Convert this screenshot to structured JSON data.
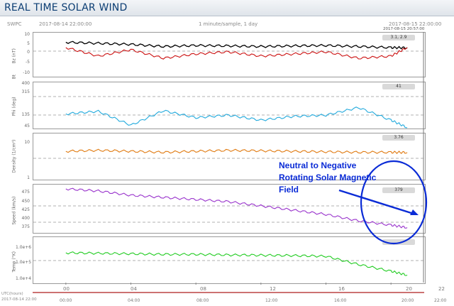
{
  "header": {
    "title": "REAL TIME SOLAR WIND",
    "source": "SWPC",
    "start": "2017-08-14 22:00:00",
    "mid": "1 minute/sample, 1 day",
    "end": "2017-08-15 22:00:00",
    "end_small": "2017-08-15 20:57:00"
  },
  "panels": [
    {
      "ylabel": "Bz (nT)",
      "ylabel2": "Bt",
      "ticks": [
        "10",
        "5",
        "0",
        "-5",
        "-10"
      ],
      "badge": "3.1, 2.9"
    },
    {
      "ylabel": "Phi (deg)",
      "ticks": [
        "400",
        "315",
        "135",
        "45"
      ],
      "badge": "41"
    },
    {
      "ylabel": "Density (1/cm³)",
      "ticks": [
        "10",
        "1"
      ],
      "badge": "3.76"
    },
    {
      "ylabel": "Speed (km/s)",
      "ticks": [
        "475",
        "450",
        "425",
        "400",
        "375"
      ],
      "badge": "379"
    },
    {
      "ylabel": "Temp (°K)",
      "ticks": [
        "1.0e+6",
        "1.0e+5",
        "1.0e+4"
      ],
      "badge": ""
    }
  ],
  "xaxis": {
    "ticks": [
      "00",
      "04",
      "08",
      "12",
      "16",
      "20",
      "22"
    ],
    "utc_label": "UTC(hours)",
    "utc_ticks": [
      "00:00",
      "04:00",
      "08:00",
      "12:00",
      "16:00",
      "20:00",
      "22:00"
    ],
    "start_small": "2017-08-14 22:00"
  },
  "annotation": {
    "lines": [
      "Neutral to Negative",
      "Rotating Solar Magnetic",
      "Field"
    ],
    "color": "#0a2bd6"
  },
  "colors": {
    "bt": "#000000",
    "bz": "#cc1111",
    "phi": "#22aadd",
    "density": "#e07a10",
    "speed": "#9933cc",
    "temp": "#22cc22"
  },
  "chart_data": {
    "type": "line",
    "x": [
      0,
      2,
      4,
      6,
      8,
      10,
      12,
      14,
      16,
      18,
      20,
      21
    ],
    "series": [
      {
        "name": "Bt",
        "values": [
          5.5,
          5,
          4.5,
          3.5,
          4,
          3.8,
          3.5,
          3.8,
          4,
          3.5,
          3,
          2.9
        ]
      },
      {
        "name": "Bz",
        "values": [
          3,
          -1,
          2,
          -2,
          0,
          1,
          -1,
          0,
          1,
          -2,
          -1,
          3.1
        ]
      },
      {
        "name": "Phi",
        "values": [
          150,
          170,
          60,
          175,
          120,
          140,
          100,
          130,
          140,
          200,
          100,
          41
        ]
      },
      {
        "name": "Density",
        "values": [
          4,
          4.2,
          4,
          3.8,
          4,
          4.2,
          4.1,
          4,
          3.9,
          3.8,
          3.8,
          3.76
        ]
      },
      {
        "name": "Speed",
        "values": [
          470,
          465,
          455,
          450,
          445,
          440,
          430,
          420,
          410,
          395,
          385,
          379
        ]
      },
      {
        "name": "Temp",
        "values": [
          200000,
          190000,
          180000,
          170000,
          170000,
          160000,
          155000,
          150000,
          140000,
          60000,
          30000,
          20000
        ]
      }
    ]
  }
}
